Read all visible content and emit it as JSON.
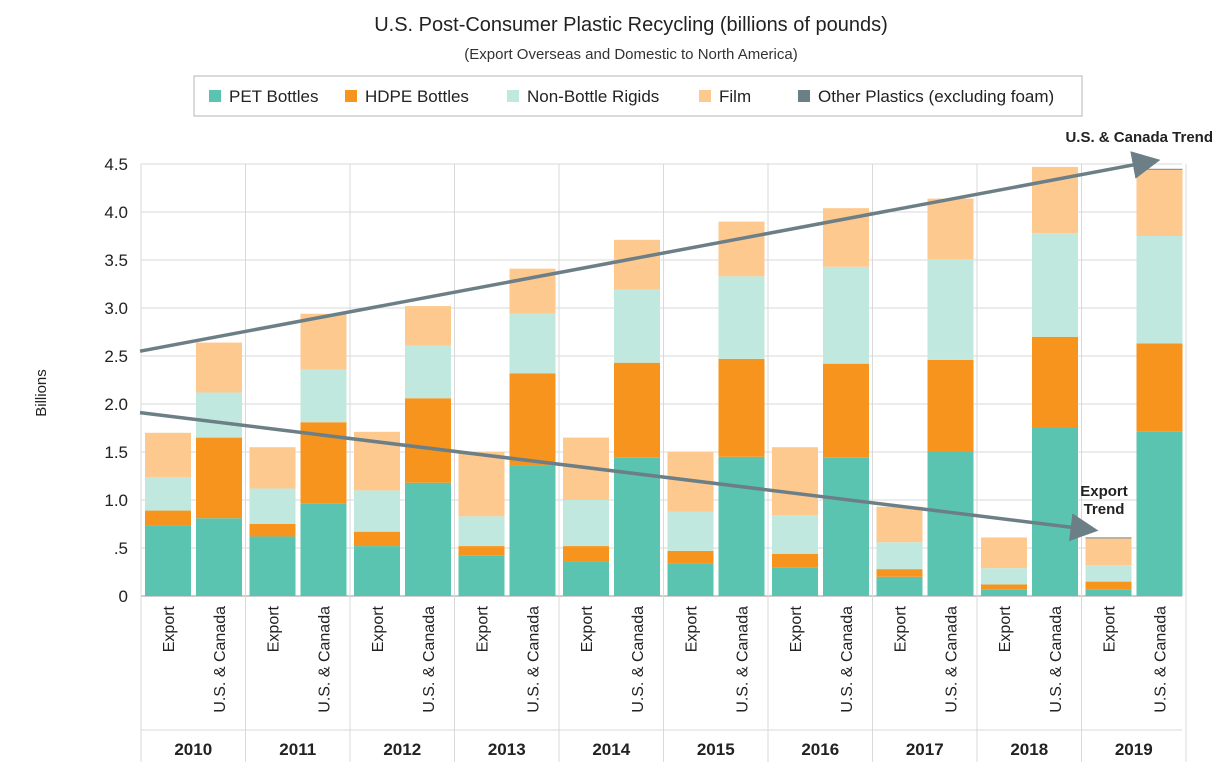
{
  "chart_data": {
    "type": "bar",
    "stacked": true,
    "title": "U.S. Post-Consumer Plastic Recycling (billions of pounds)",
    "subtitle": "(Export Overseas and Domestic to North America)",
    "ylabel": "Billions",
    "ylim": [
      0,
      4.5
    ],
    "yticks": [
      {
        "value": 0,
        "label": "0"
      },
      {
        "value": 0.5,
        "label": ".5"
      },
      {
        "value": 1.0,
        "label": "1.0"
      },
      {
        "value": 1.5,
        "label": "1.5"
      },
      {
        "value": 2.0,
        "label": "2.0"
      },
      {
        "value": 2.5,
        "label": "2.5"
      },
      {
        "value": 3.0,
        "label": "3.0"
      },
      {
        "value": 3.5,
        "label": "3.5"
      },
      {
        "value": 4.0,
        "label": "4.0"
      },
      {
        "value": 4.5,
        "label": "4.5"
      }
    ],
    "grid": true,
    "legend_position": "top",
    "years": [
      "2010",
      "2011",
      "2012",
      "2013",
      "2014",
      "2015",
      "2016",
      "2017",
      "2018",
      "2019"
    ],
    "bar_labels": [
      "Export",
      "U.S. & Canada"
    ],
    "series": [
      {
        "name": "PET Bottles",
        "color": "#5bc4b1",
        "values": [
          0.73,
          0.81,
          0.62,
          0.96,
          0.52,
          1.18,
          0.42,
          1.36,
          0.36,
          1.44,
          0.34,
          1.45,
          0.3,
          1.44,
          0.2,
          1.51,
          0.07,
          1.75,
          0.07,
          1.71
        ]
      },
      {
        "name": "HDPE Bottles",
        "color": "#f7941d",
        "values": [
          0.16,
          0.84,
          0.13,
          0.85,
          0.15,
          0.88,
          0.1,
          0.96,
          0.16,
          0.99,
          0.13,
          1.02,
          0.14,
          0.98,
          0.08,
          0.95,
          0.05,
          0.95,
          0.08,
          0.92
        ]
      },
      {
        "name": "Non-Bottle Rigids",
        "color": "#c0e8de",
        "values": [
          0.35,
          0.47,
          0.37,
          0.55,
          0.43,
          0.55,
          0.31,
          0.62,
          0.48,
          0.76,
          0.41,
          0.86,
          0.4,
          1.01,
          0.28,
          1.05,
          0.17,
          1.08,
          0.17,
          1.12
        ]
      },
      {
        "name": "Film",
        "color": "#fdc98f",
        "values": [
          0.46,
          0.52,
          0.43,
          0.58,
          0.61,
          0.41,
          0.67,
          0.47,
          0.65,
          0.52,
          0.62,
          0.57,
          0.71,
          0.61,
          0.37,
          0.63,
          0.32,
          0.69,
          0.28,
          0.69
        ]
      },
      {
        "name": "Other Plastics (excluding foam)",
        "color": "#6d7f86",
        "values": [
          0,
          0,
          0,
          0,
          0,
          0,
          0,
          0,
          0,
          0,
          0,
          0,
          0,
          0,
          0,
          0,
          0,
          0,
          0.01,
          0.01
        ]
      }
    ],
    "trends": [
      {
        "name": "U.S. & Canada Trend",
        "from": {
          "x": "2010 Export",
          "y": 2.55
        },
        "to": {
          "x": "2019 U.S. & Canada",
          "y": 4.53
        },
        "color": "#6d7f86"
      },
      {
        "name": "Export Trend",
        "from": {
          "x": "2010 Export",
          "y": 1.91
        },
        "to": {
          "x": "2019 Export",
          "y": 0.69
        },
        "color": "#6d7f86"
      }
    ],
    "annotations": [
      {
        "lines": [
          "U.S. & Canada Trend"
        ]
      },
      {
        "lines": [
          "Export",
          "Trend"
        ]
      }
    ]
  }
}
